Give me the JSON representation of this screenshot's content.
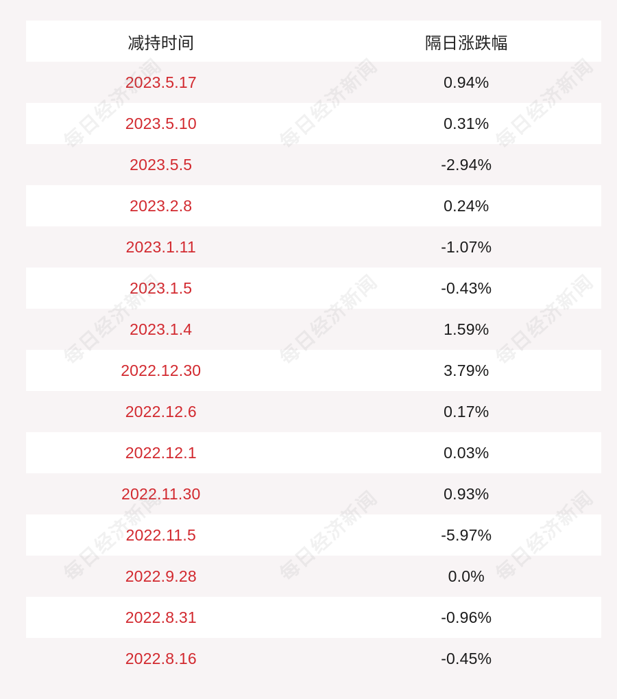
{
  "table": {
    "headers": {
      "date": "减持时间",
      "change": "隔日涨跌幅"
    },
    "rows": [
      {
        "date": "2023.5.17",
        "change": "0.94%"
      },
      {
        "date": "2023.5.10",
        "change": "0.31%"
      },
      {
        "date": "2023.5.5",
        "change": "-2.94%"
      },
      {
        "date": "2023.2.8",
        "change": "0.24%"
      },
      {
        "date": "2023.1.11",
        "change": "-1.07%"
      },
      {
        "date": "2023.1.5",
        "change": "-0.43%"
      },
      {
        "date": "2023.1.4",
        "change": "1.59%"
      },
      {
        "date": "2022.12.30",
        "change": "3.79%"
      },
      {
        "date": "2022.12.6",
        "change": "0.17%"
      },
      {
        "date": "2022.12.1",
        "change": "0.03%"
      },
      {
        "date": "2022.11.30",
        "change": "0.93%"
      },
      {
        "date": "2022.11.5",
        "change": "-5.97%"
      },
      {
        "date": "2022.9.28",
        "change": "0.0%"
      },
      {
        "date": "2022.8.31",
        "change": "-0.96%"
      },
      {
        "date": "2022.8.16",
        "change": "-0.45%"
      }
    ]
  },
  "watermark": {
    "text": "每日经济新闻"
  },
  "colors": {
    "date_text": "#d2292f",
    "value_text": "#1a1a1a",
    "row_white": "#ffffff",
    "row_tinted": "#f8f4f5"
  }
}
